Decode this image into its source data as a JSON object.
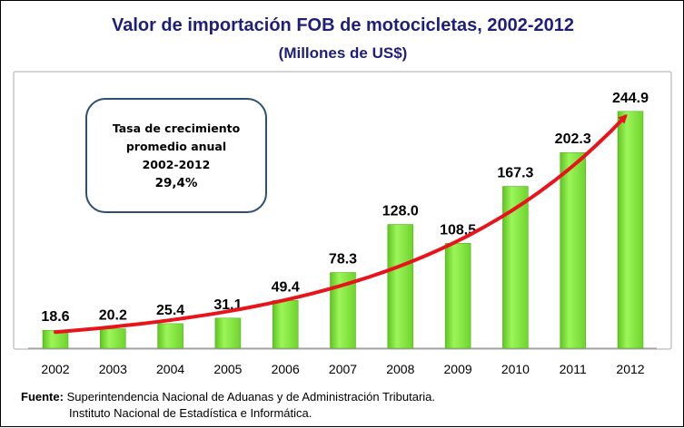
{
  "chart_data": {
    "type": "bar",
    "title": "Valor de importación FOB de motocicletas, 2002-2012",
    "subtitle": "(Millones de US$)",
    "categories": [
      "2002",
      "2003",
      "2004",
      "2005",
      "2006",
      "2007",
      "2008",
      "2009",
      "2010",
      "2011",
      "2012"
    ],
    "values": [
      18.6,
      20.2,
      25.4,
      31.1,
      49.4,
      78.3,
      128.0,
      108.5,
      167.3,
      202.3,
      244.9
    ],
    "value_labels": [
      "18.6",
      "20.2",
      "25.4",
      "31.1",
      "49.4",
      "78.3",
      "128.0",
      "108.5",
      "167.3",
      "202.3",
      "244.9"
    ],
    "ylim": [
      0,
      270
    ],
    "grid": false,
    "legend": "none",
    "bar_color": "#7ee83a",
    "trend_color": "#e8141c",
    "annotation": {
      "line1": "Tasa de crecimiento",
      "line2": "promedio anual",
      "line3": "2002-2012",
      "line4": "29,4%"
    }
  },
  "source": {
    "label": "Fuente:",
    "line1": "Superintendencia Nacional de Aduanas y de Administración Tributaria.",
    "line2": "Instituto  Nacional de Estadística e Informática."
  },
  "colors": {
    "title": "#1f1f7a",
    "plot_border": "#aaaaaa"
  }
}
